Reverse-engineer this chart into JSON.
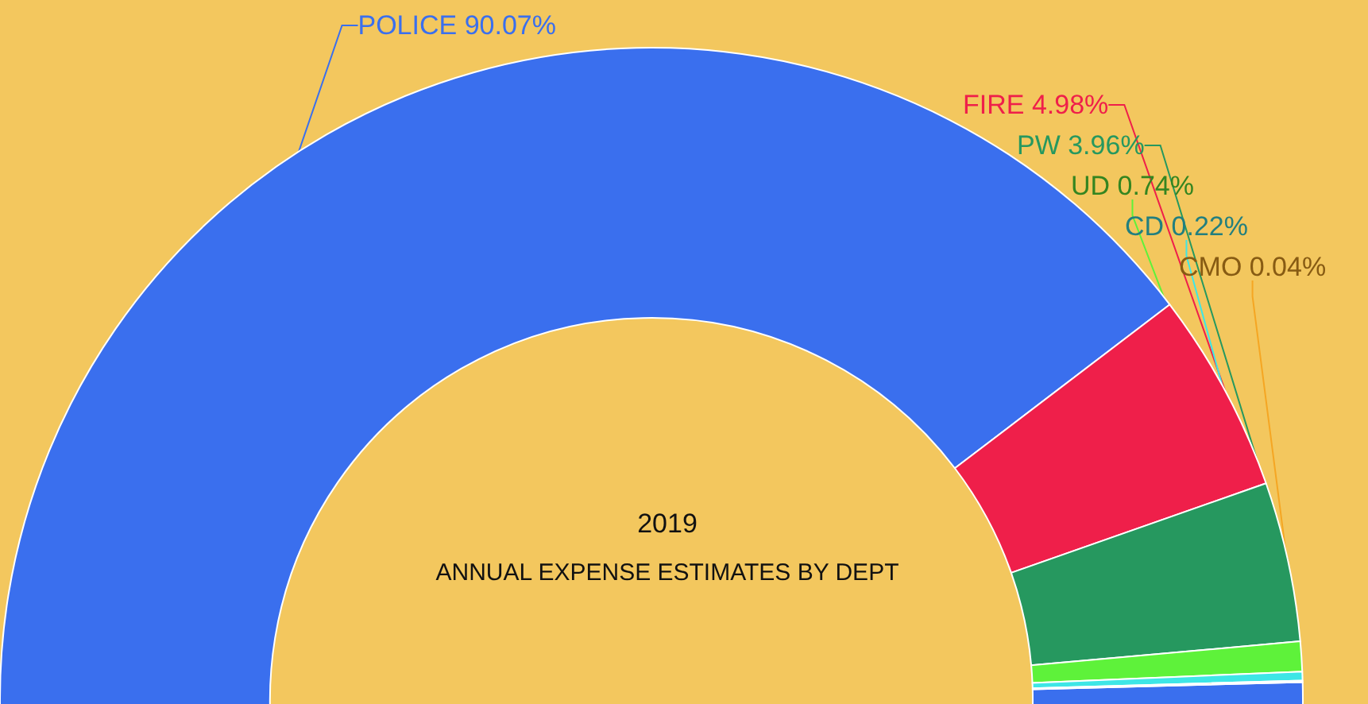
{
  "chart_data": {
    "type": "donut",
    "title": "ANNUAL EXPENSE ESTIMATES BY DEPT",
    "subtitle": "2019",
    "categories": [
      "POLICE",
      "FIRE",
      "PW",
      "UD",
      "CD",
      "CMO"
    ],
    "values": [
      90.07,
      4.98,
      3.96,
      0.74,
      0.22,
      0.04
    ],
    "value_labels": [
      "90.07%",
      "4.98%",
      "3.96%",
      "0.74%",
      "0.22%",
      "0.04%"
    ],
    "colors": [
      "#3a6fee",
      "#ef1f4a",
      "#26985f",
      "#5ef23a",
      "#3ee6e6",
      "#f5a623"
    ],
    "legend": false
  }
}
